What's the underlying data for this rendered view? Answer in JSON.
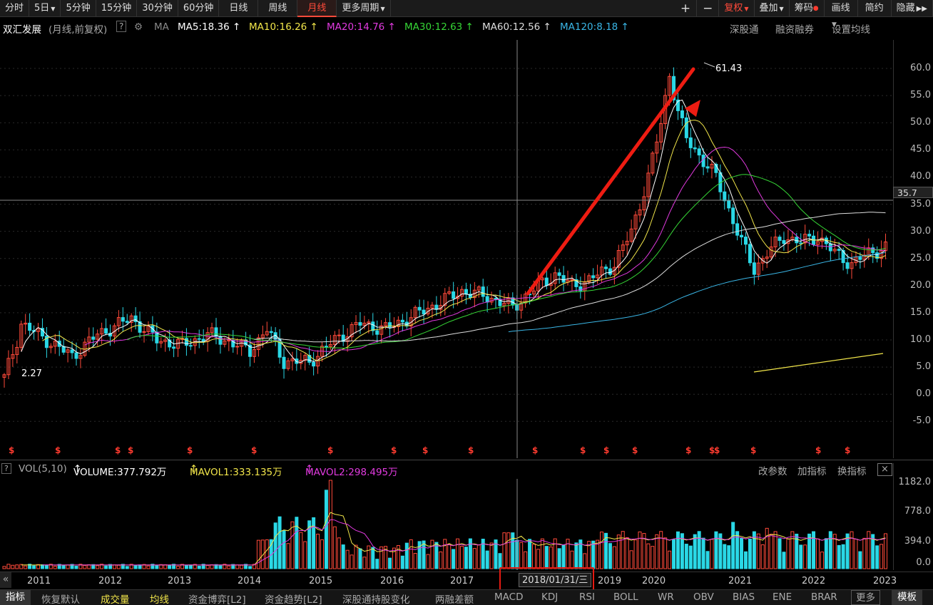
{
  "periods": [
    {
      "label": "分时"
    },
    {
      "label": "5日",
      "dd": true
    },
    {
      "label": "5分钟"
    },
    {
      "label": "15分钟"
    },
    {
      "label": "30分钟"
    },
    {
      "label": "60分钟"
    },
    {
      "label": "日线"
    },
    {
      "label": "周线"
    },
    {
      "label": "月线",
      "active": true
    },
    {
      "label": "更多周期",
      "dd": true
    }
  ],
  "toolbar_right": {
    "plus": "+",
    "minus": "−",
    "fuquan": "复权",
    "overlay": "叠加",
    "chips": "筹码",
    "draw": "画线",
    "simple": "简约",
    "hide": "隐藏"
  },
  "stock": {
    "name": "双汇发展",
    "mode": "(月线,前复权)",
    "help": "?",
    "ma_label": "MA"
  },
  "ma": [
    {
      "name": "MA5",
      "value": "18.36",
      "color": "#ffffff"
    },
    {
      "name": "MA10",
      "value": "16.26",
      "color": "#f2e64a"
    },
    {
      "name": "MA20",
      "value": "14.76",
      "color": "#e23ae0"
    },
    {
      "name": "MA30",
      "value": "12.63",
      "color": "#36d636"
    },
    {
      "name": "MA60",
      "value": "12.56",
      "color": "#dddddd"
    },
    {
      "name": "MA120",
      "value": "8.18",
      "color": "#3ab6e6"
    }
  ],
  "links": {
    "sgt": "深股通",
    "rzrq": "融资融券",
    "set_ma": "设置均线"
  },
  "price_axis": [
    "60.0",
    "55.0",
    "50.0",
    "45.0",
    "40.0",
    "35.0",
    "30.0",
    "25.0",
    "20.0",
    "15.0",
    "10.0",
    "5.0",
    "0.0",
    "-5.0"
  ],
  "current_price": "35.7",
  "high_label": "61.43",
  "low_label": "2.27",
  "vol": {
    "question": "?",
    "name": "VOL(5,10)",
    "volume": "VOLUME:377.792万",
    "mavol1": "MAVOL1:333.135万",
    "mavol2": "MAVOL2:298.495万",
    "gaicanshu": "改参数",
    "addind": "加指标",
    "swap": "换指标",
    "close": "×"
  },
  "vol_axis": [
    "1182.0",
    "778.0",
    "394.0",
    "0.0"
  ],
  "years": [
    "2011",
    "2012",
    "2013",
    "2014",
    "2015",
    "2016",
    "2017",
    "2019",
    "2020",
    "2021",
    "2022",
    "2023"
  ],
  "cursor_date": "2018/01/31/三",
  "scroll_left": "«",
  "bottom": {
    "indicator": "指标",
    "reset": "恢复默认",
    "chengjiao": "成交量",
    "junxian": "均线",
    "zjby": "资金博弈[L2]",
    "zjqs": "资金趋势[L2]",
    "sgtcg": "深股通持股变化",
    "lrce": "两融差额",
    "macd": "MACD",
    "kdj": "KDJ",
    "rsi": "RSI",
    "boll": "BOLL",
    "wr": "WR",
    "obv": "OBV",
    "bias": "BIAS",
    "ene": "ENE",
    "brar": "BRAR",
    "more": "更多",
    "template": "模板"
  },
  "signal_mark": "$",
  "colors": {
    "up": "#ff4a3a",
    "down": "#2ad8e6",
    "arrow": "#ee1c12"
  }
}
